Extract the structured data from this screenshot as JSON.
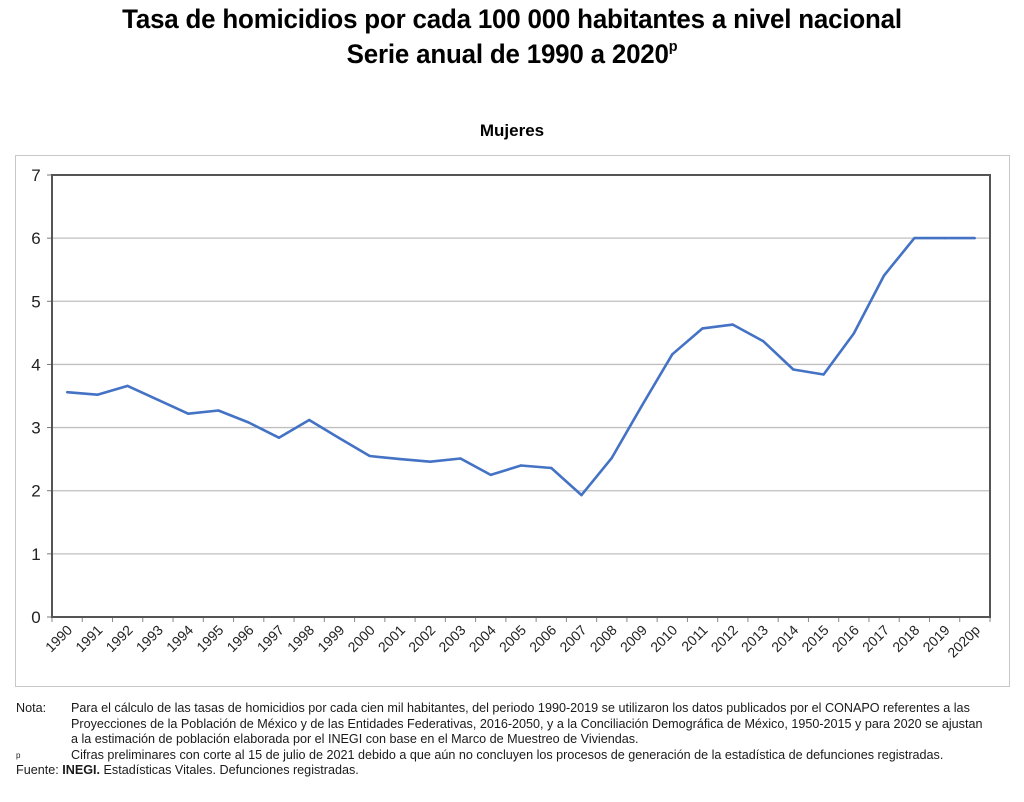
{
  "header": {
    "title_line1": "Tasa de homicidios por cada 100 000 habitantes a nivel nacional",
    "title_line2": "Serie anual de 1990 a 2020",
    "title_line2_sup": "p"
  },
  "chart_data": {
    "type": "line",
    "title": "Mujeres",
    "xlabel": "",
    "ylabel": "",
    "ylim": [
      0,
      7
    ],
    "yticks": [
      "0",
      "1",
      "2",
      "3",
      "4",
      "5",
      "6",
      "7"
    ],
    "grid": true,
    "legend": "none",
    "line_color": "#4472C4",
    "categories": [
      "1990",
      "1991",
      "1992",
      "1993",
      "1994",
      "1995",
      "1996",
      "1997",
      "1998",
      "1999",
      "2000",
      "2001",
      "2002",
      "2003",
      "2004",
      "2005",
      "2006",
      "2007",
      "2008",
      "2009",
      "2010",
      "2011",
      "2012",
      "2013",
      "2014",
      "2015",
      "2016",
      "2017",
      "2018",
      "2019",
      "2020p"
    ],
    "series": [
      {
        "name": "Mujeres",
        "values": [
          3.56,
          3.52,
          3.66,
          3.44,
          3.22,
          3.27,
          3.08,
          2.84,
          3.12,
          2.83,
          2.55,
          2.5,
          2.46,
          2.51,
          2.25,
          2.4,
          2.36,
          1.93,
          2.52,
          3.35,
          4.16,
          4.57,
          4.63,
          4.37,
          3.92,
          3.84,
          4.49,
          5.41,
          6.0,
          6.0,
          6.0
        ]
      }
    ]
  },
  "notes": {
    "nota_label": "Nota:",
    "nota_text": "Para el cálculo de las tasas de homicidios por cada cien mil habitantes, del periodo 1990-2019 se utilizaron los datos publicados por el CONAPO referentes a las Proyecciones de la Población de México y de las Entidades Federativas, 2016-2050, y a la Conciliación Demográfica de México, 1950-2015 y para 2020 se ajustan a la estimación de población elaborada por el INEGI con base en el Marco de Muestreo de Viviendas.",
    "p_label": "p",
    "p_text": "Cifras preliminares con corte al 15 de julio de 2021 debido a que aún no concluyen los procesos de generación de la estadística de defunciones registradas.",
    "source_label": "Fuente:",
    "source_org": "INEGI.",
    "source_text": "Estadísticas Vitales. Defunciones registradas."
  }
}
